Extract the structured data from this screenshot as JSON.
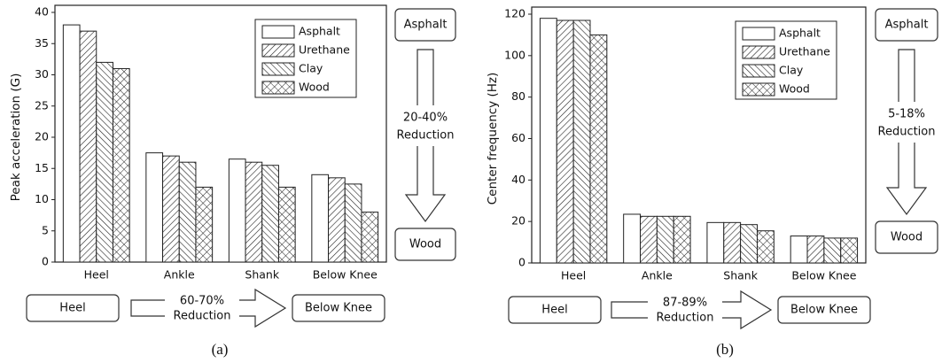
{
  "chart_data": [
    {
      "type": "bar",
      "ylabel": "Peak acceleration (G)",
      "categories": [
        "Heel",
        "Ankle",
        "Shank",
        "Below Knee"
      ],
      "series": [
        {
          "name": "Asphalt",
          "color": "#ffffff",
          "hatch": "none",
          "values": [
            38,
            17.5,
            16.5,
            14
          ]
        },
        {
          "name": "Urethane",
          "color": "#ffffff",
          "hatch": "diag",
          "values": [
            37,
            17,
            16,
            13.5
          ]
        },
        {
          "name": "Clay",
          "color": "#ffffff",
          "hatch": "back",
          "values": [
            32,
            16,
            15.5,
            12.5
          ]
        },
        {
          "name": "Wood",
          "color": "#ffffff",
          "hatch": "cross",
          "values": [
            31,
            12,
            12,
            8
          ]
        }
      ],
      "ylim": [
        0,
        40
      ],
      "yticks": [
        0,
        5,
        10,
        15,
        20,
        25,
        30,
        35,
        40
      ],
      "legend": "upper right",
      "side_diagram": {
        "top": "Asphalt",
        "bottom": "Wood",
        "text": [
          "20-40%",
          "Reduction"
        ]
      },
      "bottom_diagram": {
        "left": "Heel",
        "right": "Below Knee",
        "text": [
          "60-70%",
          "Reduction"
        ]
      },
      "panel_label": "(a)"
    },
    {
      "type": "bar",
      "ylabel": "Center frequency (Hz)",
      "categories": [
        "Heel",
        "Ankle",
        "Shank",
        "Below Knee"
      ],
      "series": [
        {
          "name": "Asphalt",
          "color": "#ffffff",
          "hatch": "none",
          "values": [
            118,
            23.5,
            19.5,
            13
          ]
        },
        {
          "name": "Urethane",
          "color": "#ffffff",
          "hatch": "diag",
          "values": [
            117,
            22.5,
            19.5,
            13
          ]
        },
        {
          "name": "Clay",
          "color": "#ffffff",
          "hatch": "back",
          "values": [
            117,
            22.5,
            18.5,
            12
          ]
        },
        {
          "name": "Wood",
          "color": "#ffffff",
          "hatch": "cross",
          "values": [
            110,
            22.5,
            15.5,
            12
          ]
        }
      ],
      "ylim": [
        0,
        120
      ],
      "yticks": [
        0,
        20,
        40,
        60,
        80,
        100,
        120
      ],
      "legend": "upper right",
      "side_diagram": {
        "top": "Asphalt",
        "bottom": "Wood",
        "text": [
          "5-18%",
          "Reduction"
        ]
      },
      "bottom_diagram": {
        "left": "Heel",
        "right": "Below Knee",
        "text": [
          "87-89%",
          "Reduction"
        ]
      },
      "panel_label": "(b)"
    }
  ]
}
